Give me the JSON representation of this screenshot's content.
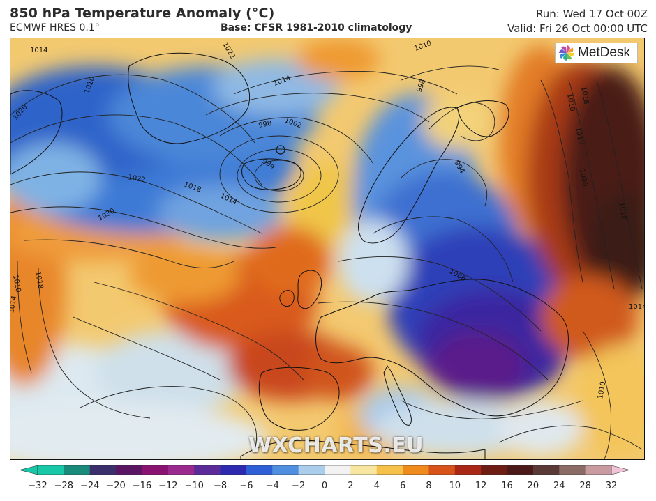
{
  "header": {
    "title": "850 hPa Temperature Anomaly (°C)",
    "model": "ECMWF HRES 0.1°",
    "base": "Base: CFSR 1981-2010 climatology",
    "run": "Run: Wed 17 Oct 00Z",
    "valid": "Valid: Fri 26 Oct 00:00 UTC"
  },
  "logo": {
    "text": "MetDesk",
    "icon": "pinwheel-icon"
  },
  "watermark": "WXCHARTS.EU",
  "isobar_labels": [
    "1014",
    "1010",
    "1020",
    "1022",
    "1018",
    "1014",
    "1030",
    "1010",
    "1018",
    "1014",
    "998",
    "994",
    "1002",
    "1014",
    "1022",
    "1010",
    "1010",
    "998",
    "994",
    "1006",
    "1018",
    "1010",
    "1006",
    "1010",
    "1014",
    "1010"
  ],
  "colorbar": {
    "ticks": [
      "−32",
      "−28",
      "−24",
      "−20",
      "−16",
      "−12",
      "−10",
      "−8",
      "−6",
      "−4",
      "−2",
      "0",
      "2",
      "4",
      "6",
      "8",
      "10",
      "12",
      "16",
      "20",
      "24",
      "28",
      "32"
    ],
    "colors": [
      "#17c7a8",
      "#1a8b7a",
      "#3a2f6b",
      "#5a1663",
      "#8a1270",
      "#9b2a8e",
      "#5b2b9a",
      "#2d2ab0",
      "#2f5fd6",
      "#4f8fe0",
      "#a9cdea",
      "#f2f2f2",
      "#f6e6a0",
      "#f5c14a",
      "#ef8a1d",
      "#d8531a",
      "#a92815",
      "#6e1d14",
      "#4b1a18",
      "#5a3a36",
      "#8b6b66",
      "#c79ba0",
      "#f0c4d6"
    ]
  }
}
